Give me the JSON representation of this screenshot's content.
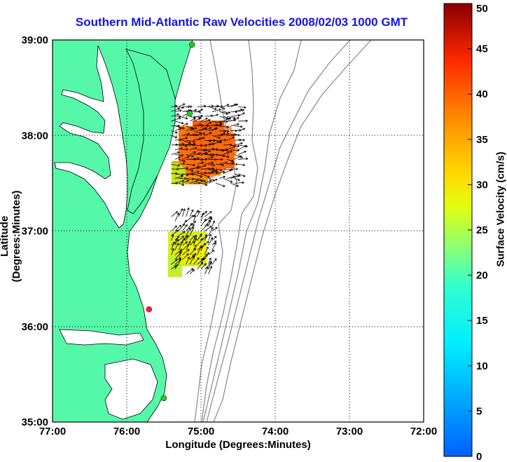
{
  "title": "Southern Mid-Atlantic Raw Velocities 2008/02/03 1000 GMT",
  "xlabel": "Longitude (Degrees:Minutes)",
  "ylabel": "Latitude (Degrees:Minutes)",
  "colorbar_label": "Surface Velocity (cm/s)",
  "x_ticks": [
    "77:00",
    "76:00",
    "75:00",
    "74:00",
    "73:00",
    "72:00"
  ],
  "y_ticks": [
    "39:00",
    "38:00",
    "37:00",
    "36:00",
    "35:00"
  ],
  "colorbar_ticks": [
    "0",
    "5",
    "10",
    "15",
    "20",
    "25",
    "30",
    "35",
    "40",
    "45",
    "50"
  ],
  "colors": {
    "land": "#55f8a8",
    "coast": "#000000",
    "bathy": "#888888",
    "grid": "#000000",
    "title": "#1414e6"
  },
  "chart_data": {
    "type": "map",
    "xlim": [
      -77,
      -72
    ],
    "ylim": [
      35,
      39
    ],
    "clim": [
      0,
      50
    ],
    "colormap": "jet",
    "grid": true,
    "stations": [
      {
        "lon": -75.12,
        "lat": 38.95,
        "color": "#22cc22"
      },
      {
        "lon": -75.15,
        "lat": 38.23,
        "color": "#22cc22"
      },
      {
        "lon": -75.7,
        "lat": 36.18,
        "color": "#ff2222"
      },
      {
        "lon": -75.5,
        "lat": 35.25,
        "color": "#22cc22"
      }
    ],
    "current_fields": [
      {
        "region": "northern",
        "lon_range": [
          -75.4,
          -74.5
        ],
        "lat_range": [
          37.5,
          38.3
        ],
        "speed_range_cm_s": [
          30,
          45
        ]
      },
      {
        "region": "southern",
        "lon_range": [
          -75.4,
          -74.85
        ],
        "lat_range": [
          36.55,
          37.15
        ],
        "speed_range_cm_s": [
          20,
          27
        ]
      }
    ]
  }
}
